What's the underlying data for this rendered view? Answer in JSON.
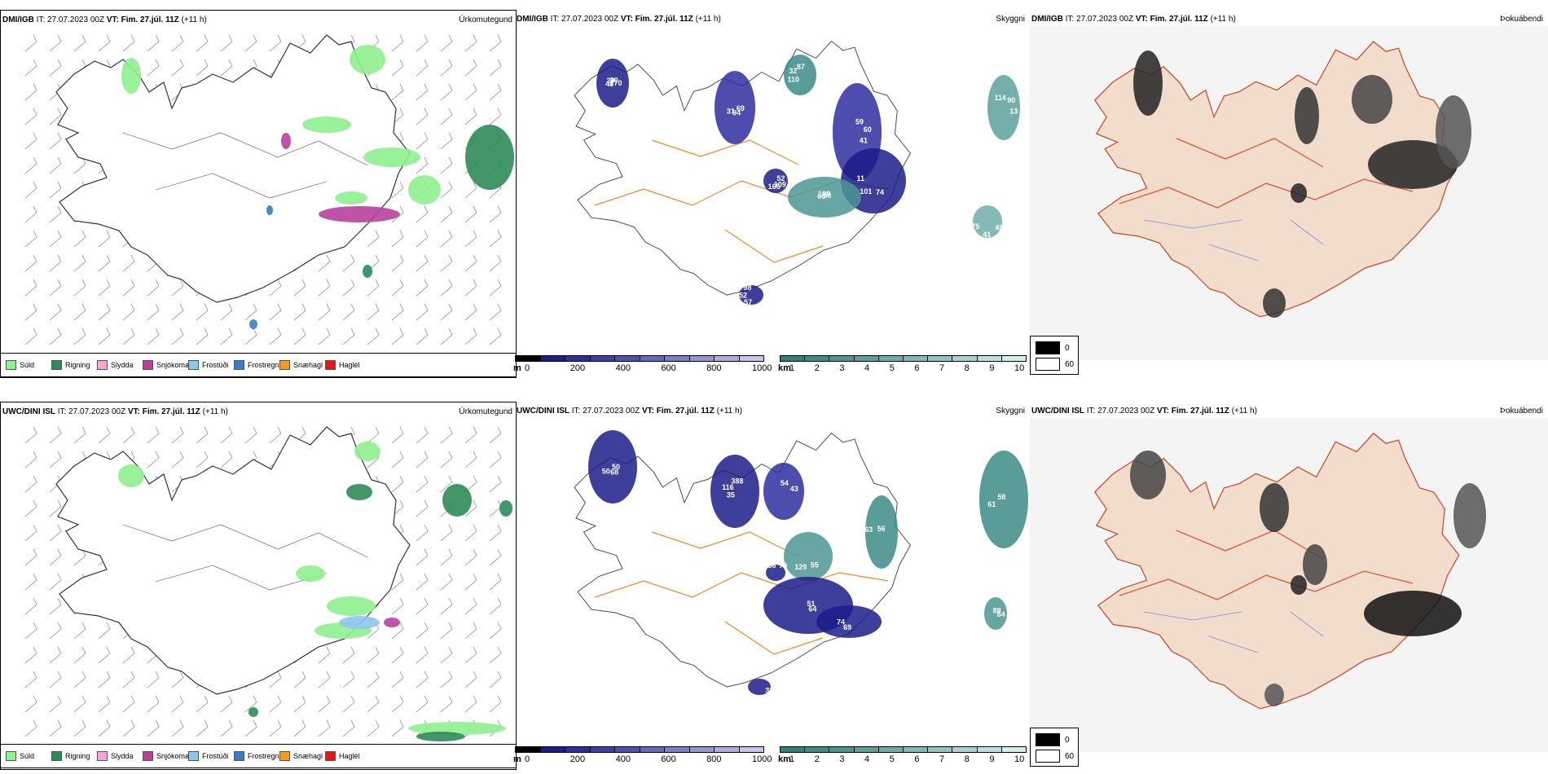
{
  "rows": [
    {
      "model": "DMI/IGB",
      "init_time": "IT: 27.07.2023 00Z",
      "valid_label": "VT: Fim. 27.júl. 11Z",
      "lead": "(+11 h)",
      "cloud_labels": [
        "770",
        "31",
        "87",
        "41",
        "11",
        "58",
        "165",
        "98",
        "13",
        "75",
        "20",
        "94",
        "32",
        "60",
        "101",
        "108",
        "109",
        "52",
        "90",
        "41",
        "20",
        "69",
        "110",
        "59",
        "74",
        "60",
        "52",
        "57",
        "114",
        "45",
        "48"
      ]
    },
    {
      "model": "UWC/DINI ISL",
      "init_time": "IT: 27.07.2023 00Z",
      "valid_label": "VT: Fim. 27.júl. 11Z",
      "lead": "(+11 h)",
      "cloud_labels": [
        "50",
        "35",
        "54",
        "55",
        "63",
        "51",
        "69",
        "66",
        "37",
        "61",
        "88",
        "68",
        "116",
        "43",
        "129",
        "56",
        "64",
        "74",
        "75",
        "49",
        "58",
        "64",
        "50",
        "388"
      ]
    }
  ],
  "params": {
    "precip": "Úrkomutegund",
    "cloud": "Skyggni",
    "fog": "Þokuábendi"
  },
  "precip_types": [
    {
      "label": "Súld",
      "color": "#8ef08e"
    },
    {
      "label": "Rigning",
      "color": "#2e8b57"
    },
    {
      "label": "Slydda",
      "color": "#f4a6d7"
    },
    {
      "label": "Snjókoma",
      "color": "#b8409e"
    },
    {
      "label": "Frostúði",
      "color": "#8ec5f0"
    },
    {
      "label": "Frostregn",
      "color": "#3a7ac8"
    },
    {
      "label": "Snæhagl",
      "color": "#f59a1e"
    },
    {
      "label": "Haglél",
      "color": "#e01818"
    }
  ],
  "scale_m": {
    "unit": "m",
    "ticks": [
      "0",
      "200",
      "400",
      "600",
      "800",
      "1000"
    ],
    "colors": [
      "#000000",
      "#1c1c8a",
      "#2e2ea0",
      "#3d3dab",
      "#5050b4",
      "#6767be",
      "#7e7ec8",
      "#9696d2",
      "#aeaedc",
      "#c6c6e6"
    ]
  },
  "scale_km": {
    "unit": "km",
    "ticks": [
      "1",
      "2",
      "3",
      "4",
      "5",
      "6",
      "7",
      "8",
      "9",
      "10"
    ],
    "colors": [
      "#2f7f7a",
      "#3d8b86",
      "#4c9692",
      "#5ca19d",
      "#6dadaa",
      "#80b9b6",
      "#94c5c2",
      "#a9d2cf",
      "#bfdedc",
      "#d6ebea"
    ]
  },
  "fog_legend": {
    "items": [
      {
        "label": "0",
        "color": "#000000"
      },
      {
        "label": "60",
        "color": "#ffffff"
      }
    ]
  }
}
